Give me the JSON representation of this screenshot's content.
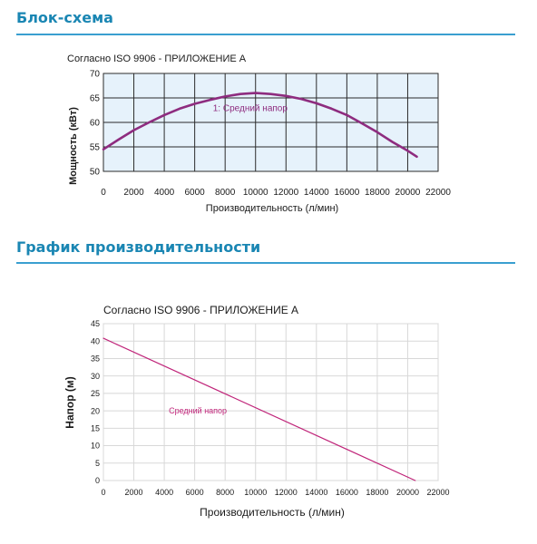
{
  "sections": [
    {
      "title": "Блок-схема"
    },
    {
      "title": "График производительности"
    }
  ],
  "colors": {
    "accent": "#1a86b3",
    "rule": "#3a9fd0",
    "curve": "#8e2c7f",
    "line": "#c0257a",
    "plot_bg": "#e6f2fb",
    "grid": "#2b2b2b"
  },
  "chart_data": [
    {
      "type": "line",
      "title": "Согласно ISO 9906 - ПРИЛОЖЕНИЕ А",
      "xlabel": "Производительность (л/мин)",
      "ylabel": "Мощность (кВт)",
      "xlim": [
        0,
        22000
      ],
      "ylim": [
        50,
        70
      ],
      "xticks": [
        0,
        2000,
        4000,
        6000,
        8000,
        10000,
        12000,
        14000,
        16000,
        18000,
        20000,
        22000
      ],
      "yticks": [
        50,
        55,
        60,
        65,
        70
      ],
      "grid": true,
      "series": [
        {
          "name": "1: Средний напор",
          "x": [
            0,
            1000,
            2000,
            3000,
            4000,
            5000,
            6000,
            7000,
            8000,
            9000,
            10000,
            11000,
            12000,
            13000,
            14000,
            15000,
            16000,
            17000,
            18000,
            19000,
            20000,
            20600
          ],
          "y": [
            54.5,
            56.5,
            58.4,
            60.0,
            61.5,
            62.8,
            63.8,
            64.6,
            65.3,
            65.8,
            66.0,
            65.8,
            65.4,
            64.8,
            63.9,
            62.8,
            61.5,
            59.8,
            58.0,
            56.0,
            54.2,
            53.0
          ]
        }
      ]
    },
    {
      "type": "line",
      "title": "Согласно ISO 9906 - ПРИЛОЖЕНИЕ А",
      "xlabel": "Производительность (л/мин)",
      "ylabel": "Напор (м)",
      "xlim": [
        0,
        22000
      ],
      "ylim": [
        0,
        45
      ],
      "xticks": [
        0,
        2000,
        4000,
        6000,
        8000,
        10000,
        12000,
        14000,
        16000,
        18000,
        20000,
        22000
      ],
      "yticks": [
        0,
        5,
        10,
        15,
        20,
        25,
        30,
        35,
        40,
        45
      ],
      "grid": true,
      "series": [
        {
          "name": "Средний напор",
          "x": [
            0,
            20500
          ],
          "y": [
            40.8,
            0
          ]
        }
      ]
    }
  ]
}
